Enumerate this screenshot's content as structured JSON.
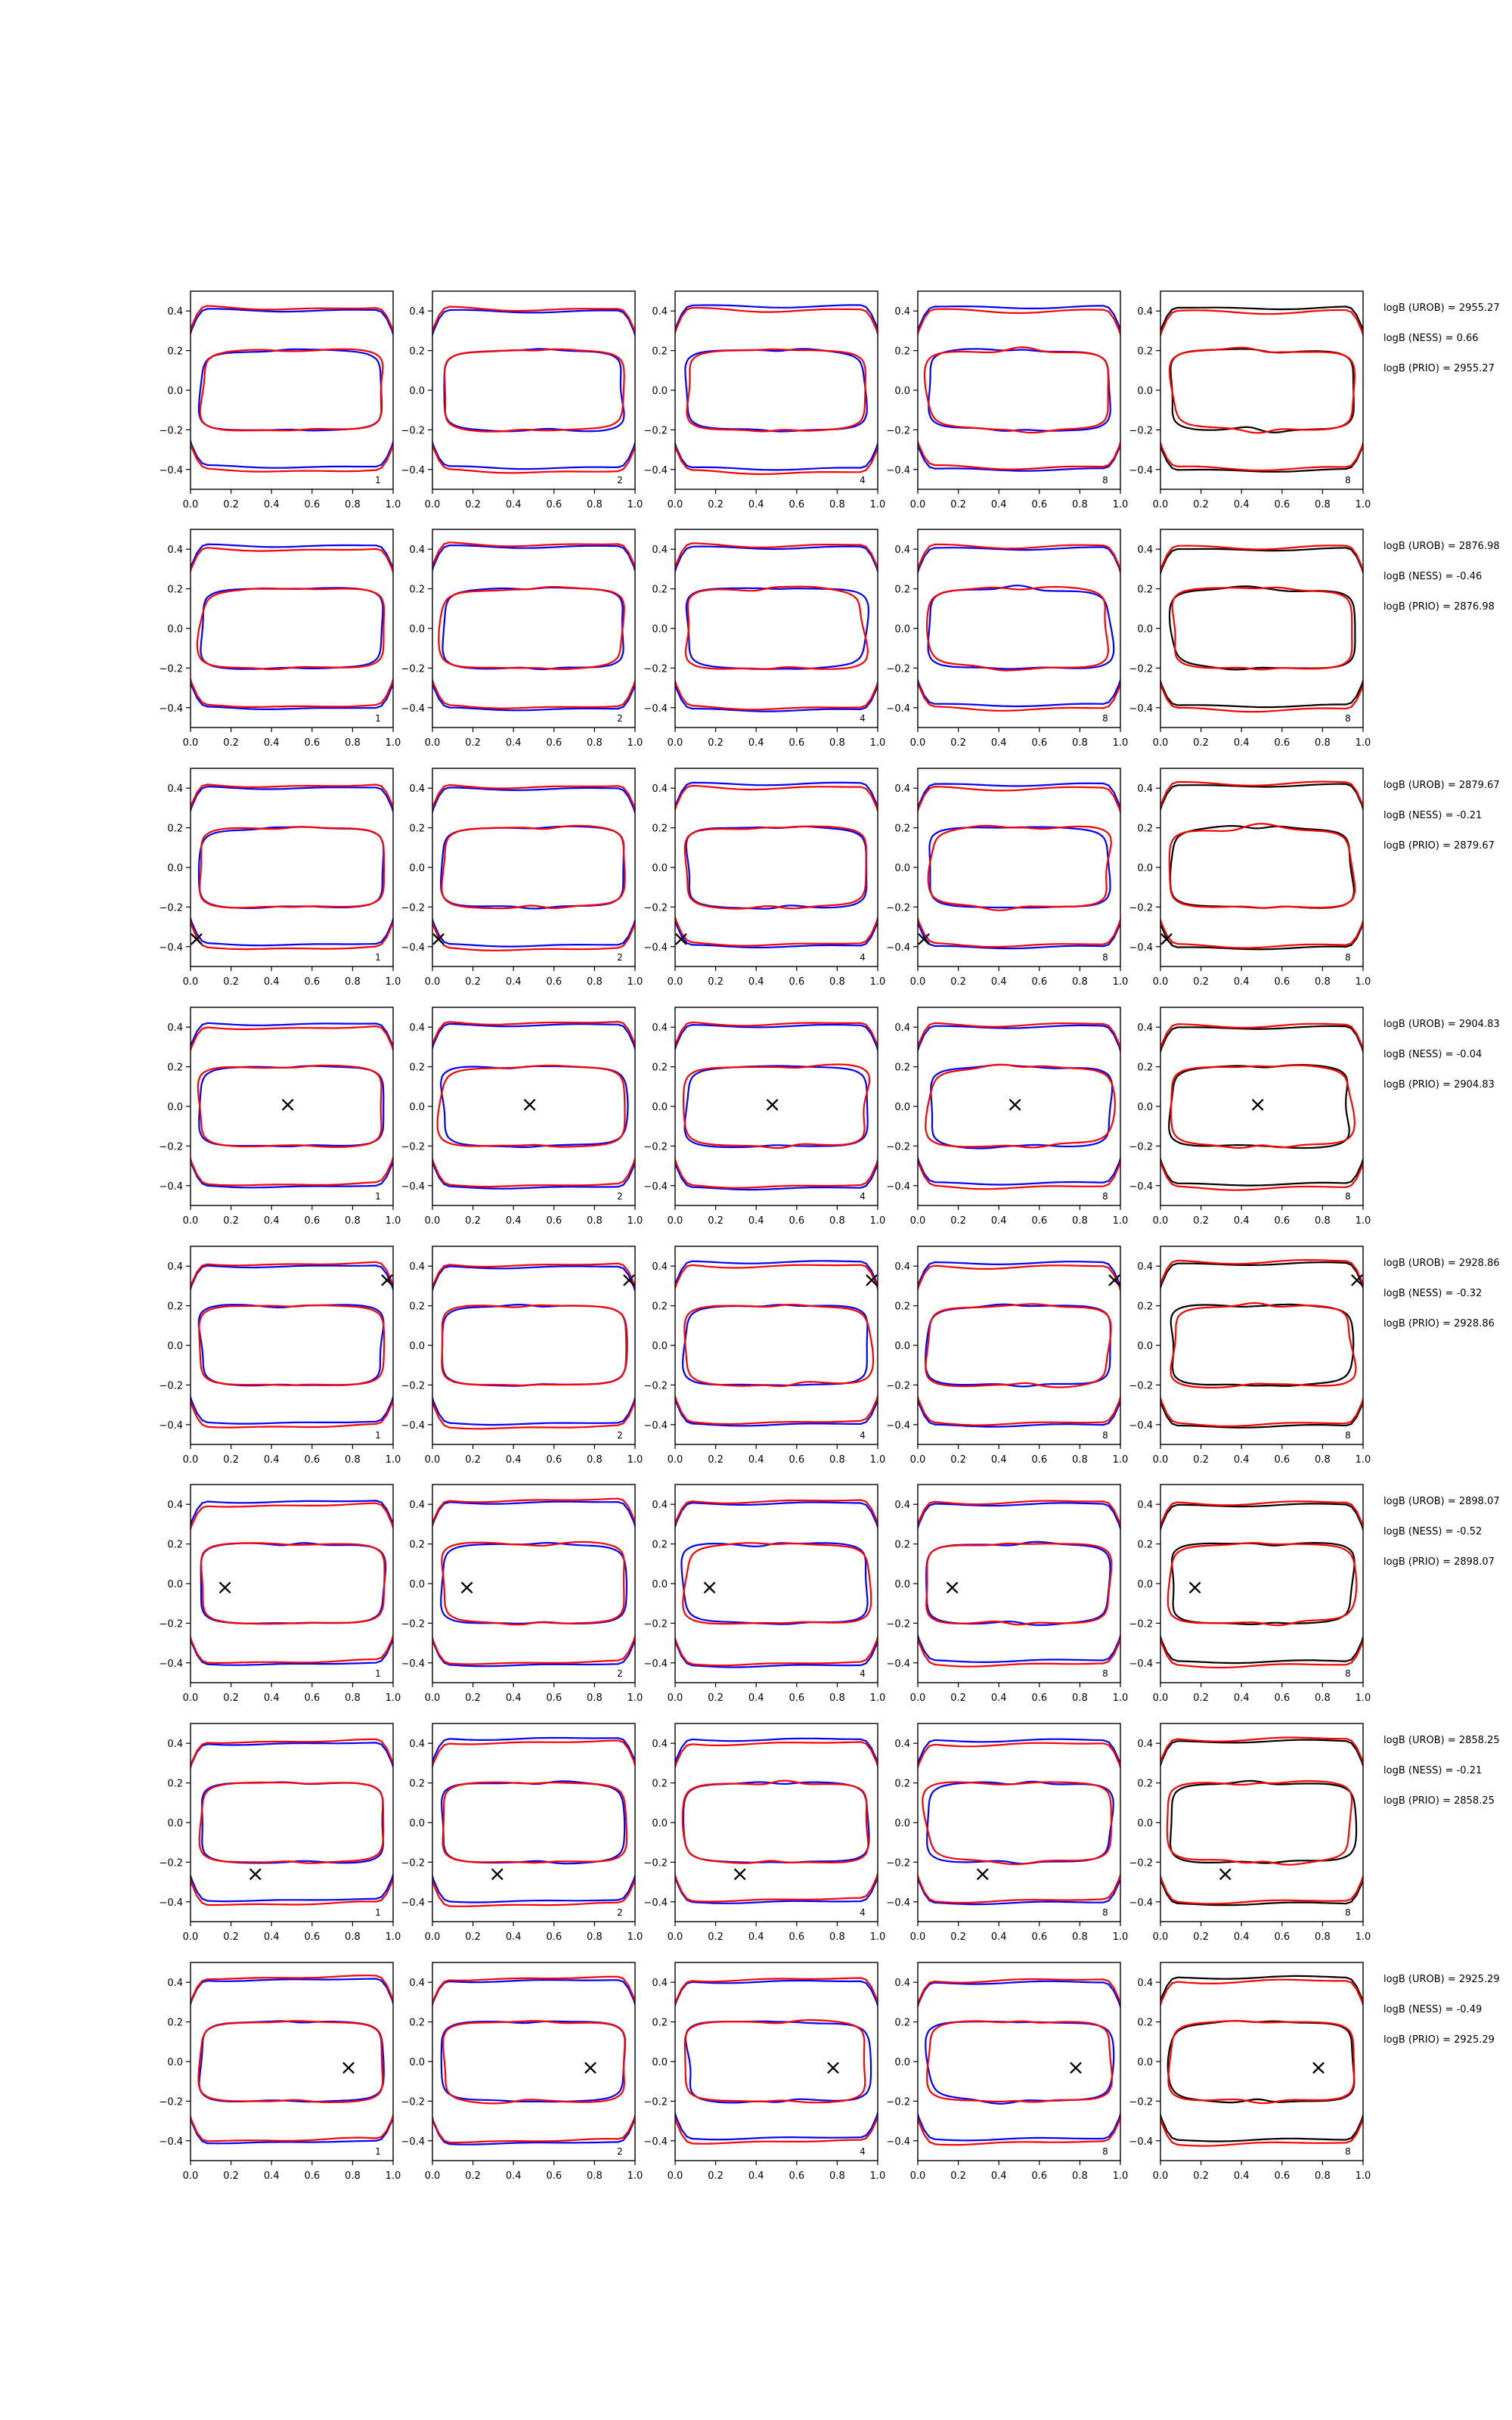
{
  "figure": {
    "columns": 5,
    "rows": 8,
    "curve_colors": {
      "uniform": "#0000ff",
      "prior": "#ff0000",
      "final": "#000000"
    },
    "marker_glyph": "×"
  },
  "chart_data": {
    "type": "line",
    "xlim": [
      0.0,
      1.0
    ],
    "ylim": [
      -0.5,
      0.5
    ],
    "x_ticks": [
      "0.0",
      "0.2",
      "0.4",
      "0.6",
      "0.8",
      "1.0"
    ],
    "y_ticks": [
      "0.4",
      "0.2",
      "0.0",
      "−0.2",
      "−0.4"
    ],
    "grid": false,
    "panel_index_labels": [
      "1",
      "2",
      "4",
      "8",
      "8"
    ],
    "rows": [
      {
        "marker": null,
        "log_bayes": [
          {
            "label": "logB (UROB) = 2955.27"
          },
          {
            "label": "logB (NESS) = 0.66"
          },
          {
            "label": "logB (PRIO) = 2955.27"
          }
        ]
      },
      {
        "marker": null,
        "log_bayes": [
          {
            "label": "logB (UROB) = 2876.98"
          },
          {
            "label": "logB (NESS) = -0.46"
          },
          {
            "label": "logB (PRIO) = 2876.98"
          }
        ]
      },
      {
        "marker": {
          "x": 0.03,
          "y": -0.36
        },
        "log_bayes": [
          {
            "label": "logB (UROB) = 2879.67"
          },
          {
            "label": "logB (NESS) = -0.21"
          },
          {
            "label": "logB (PRIO) = 2879.67"
          }
        ]
      },
      {
        "marker": {
          "x": 0.48,
          "y": 0.01
        },
        "log_bayes": [
          {
            "label": "logB (UROB) = 2904.83"
          },
          {
            "label": "logB (NESS) = -0.04"
          },
          {
            "label": "logB (PRIO) = 2904.83"
          }
        ]
      },
      {
        "marker": {
          "x": 0.97,
          "y": 0.33
        },
        "log_bayes": [
          {
            "label": "logB (UROB) = 2928.86"
          },
          {
            "label": "logB (NESS) = -0.32"
          },
          {
            "label": "logB (PRIO) = 2928.86"
          }
        ]
      },
      {
        "marker": {
          "x": 0.17,
          "y": -0.02
        },
        "log_bayes": [
          {
            "label": "logB (UROB) = 2898.07"
          },
          {
            "label": "logB (NESS) = -0.52"
          },
          {
            "label": "logB (PRIO) = 2898.07"
          }
        ]
      },
      {
        "marker": {
          "x": 0.32,
          "y": -0.26
        },
        "log_bayes": [
          {
            "label": "logB (UROB) = 2858.25"
          },
          {
            "label": "logB (NESS) = -0.21"
          },
          {
            "label": "logB (PRIO) = 2858.25"
          }
        ]
      },
      {
        "marker": {
          "x": 0.78,
          "y": -0.03
        },
        "log_bayes": [
          {
            "label": "logB (UROB) = 2925.29"
          },
          {
            "label": "logB (NESS) = -0.49"
          },
          {
            "label": "logB (PRIO) = 2925.29"
          }
        ]
      }
    ]
  }
}
